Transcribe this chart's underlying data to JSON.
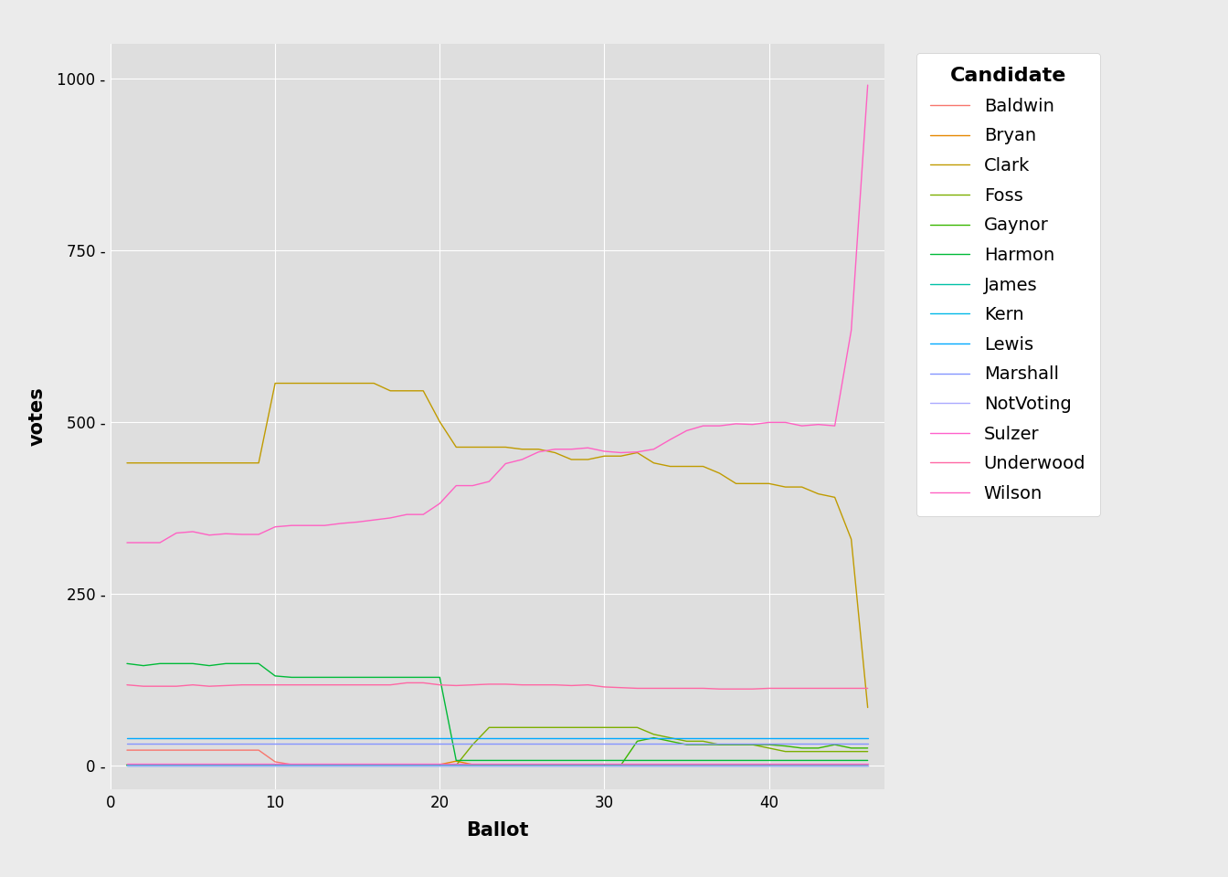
{
  "title": "",
  "xlabel": "Ballot",
  "ylabel": "votes",
  "plot_bg_color": "#DEDEDE",
  "fig_bg_color": "#EBEBEB",
  "legend_bg_color": "#FFFFFF",
  "grid_color": "white",
  "legend_title": "Candidate",
  "candidates": {
    "Baldwin": {
      "color": "#F8766D",
      "ballots": [
        1,
        2,
        3,
        4,
        5,
        6,
        7,
        8,
        9,
        10,
        11,
        12,
        13,
        14,
        15,
        16,
        17,
        18,
        19,
        20,
        21,
        22,
        23,
        24,
        25,
        26,
        27,
        28,
        29,
        30,
        31,
        32,
        33,
        34,
        35,
        36,
        37,
        38,
        39,
        40,
        41,
        42,
        43,
        44,
        45,
        46
      ],
      "votes": [
        22,
        22,
        22,
        22,
        22,
        22,
        22,
        22,
        22,
        5,
        1,
        1,
        1,
        1,
        1,
        1,
        1,
        1,
        1,
        1,
        0,
        0,
        0,
        0,
        0,
        0,
        0,
        0,
        0,
        0,
        0,
        0,
        0,
        0,
        0,
        0,
        0,
        0,
        0,
        0,
        0,
        0,
        0,
        0,
        0,
        0
      ]
    },
    "Bryan": {
      "color": "#E58700",
      "ballots": [
        1,
        2,
        3,
        4,
        5,
        6,
        7,
        8,
        9,
        10,
        11,
        12,
        13,
        14,
        15,
        16,
        17,
        18,
        19,
        20,
        21,
        22,
        23,
        24,
        25,
        26,
        27,
        28,
        29,
        30,
        31,
        32,
        33,
        34,
        35,
        36,
        37,
        38,
        39,
        40,
        41,
        42,
        43,
        44,
        45,
        46
      ],
      "votes": [
        1,
        1,
        1,
        1,
        1,
        1,
        1,
        1,
        1,
        1,
        1,
        1,
        1,
        1,
        1,
        1,
        1,
        1,
        1,
        1,
        6,
        1,
        1,
        1,
        1,
        1,
        1,
        1,
        1,
        1,
        1,
        1,
        1,
        1,
        1,
        1,
        1,
        1,
        1,
        1,
        1,
        1,
        1,
        1,
        1,
        1
      ]
    },
    "Clark": {
      "color": "#C09B00",
      "ballots": [
        1,
        2,
        3,
        4,
        5,
        6,
        7,
        8,
        9,
        10,
        11,
        12,
        13,
        14,
        15,
        16,
        17,
        18,
        19,
        20,
        21,
        22,
        23,
        24,
        25,
        26,
        27,
        28,
        29,
        30,
        31,
        32,
        33,
        34,
        35,
        36,
        37,
        38,
        39,
        40,
        41,
        42,
        43,
        44,
        45,
        46
      ],
      "votes": [
        440,
        440,
        440,
        440,
        440,
        440,
        440,
        440,
        440,
        556,
        556,
        556,
        556,
        556,
        556,
        556,
        545,
        545,
        545,
        500,
        463,
        463,
        463,
        463,
        460,
        460,
        455,
        445,
        445,
        450,
        450,
        455,
        440,
        435,
        435,
        435,
        425,
        410,
        410,
        410,
        405,
        405,
        395,
        390,
        329,
        84
      ]
    },
    "Foss": {
      "color": "#7CAE00",
      "ballots": [
        1,
        2,
        3,
        4,
        5,
        6,
        7,
        8,
        9,
        10,
        11,
        12,
        13,
        14,
        15,
        16,
        17,
        18,
        19,
        20,
        21,
        22,
        23,
        24,
        25,
        26,
        27,
        28,
        29,
        30,
        31,
        32,
        33,
        34,
        35,
        36,
        37,
        38,
        39,
        40,
        41,
        42,
        43,
        44,
        45,
        46
      ],
      "votes": [
        0,
        0,
        0,
        0,
        0,
        0,
        0,
        0,
        0,
        0,
        0,
        0,
        0,
        0,
        0,
        0,
        0,
        0,
        0,
        0,
        0,
        30,
        55,
        55,
        55,
        55,
        55,
        55,
        55,
        55,
        55,
        55,
        45,
        40,
        35,
        35,
        30,
        30,
        30,
        25,
        20,
        20,
        20,
        20,
        20,
        20
      ]
    },
    "Gaynor": {
      "color": "#39B600",
      "ballots": [
        1,
        2,
        3,
        4,
        5,
        6,
        7,
        8,
        9,
        10,
        11,
        12,
        13,
        14,
        15,
        16,
        17,
        18,
        19,
        20,
        21,
        22,
        23,
        24,
        25,
        26,
        27,
        28,
        29,
        30,
        31,
        32,
        33,
        34,
        35,
        36,
        37,
        38,
        39,
        40,
        41,
        42,
        43,
        44,
        45,
        46
      ],
      "votes": [
        0,
        0,
        0,
        0,
        0,
        0,
        0,
        0,
        0,
        0,
        0,
        0,
        0,
        0,
        0,
        0,
        0,
        0,
        0,
        0,
        0,
        0,
        0,
        0,
        0,
        0,
        0,
        0,
        0,
        0,
        0,
        35,
        40,
        35,
        30,
        30,
        30,
        30,
        30,
        30,
        28,
        25,
        25,
        30,
        25,
        25
      ]
    },
    "Harmon": {
      "color": "#00BA38",
      "ballots": [
        1,
        2,
        3,
        4,
        5,
        6,
        7,
        8,
        9,
        10,
        11,
        12,
        13,
        14,
        15,
        16,
        17,
        18,
        19,
        20,
        21,
        22,
        23,
        24,
        25,
        26,
        27,
        28,
        29,
        30,
        31,
        32,
        33,
        34,
        35,
        36,
        37,
        38,
        39,
        40,
        41,
        42,
        43,
        44,
        45,
        46
      ],
      "votes": [
        148,
        145,
        148,
        148,
        148,
        145,
        148,
        148,
        148,
        130,
        128,
        128,
        128,
        128,
        128,
        128,
        128,
        128,
        128,
        128,
        7,
        7,
        7,
        7,
        7,
        7,
        7,
        7,
        7,
        7,
        7,
        7,
        7,
        7,
        7,
        7,
        7,
        7,
        7,
        7,
        7,
        7,
        7,
        7,
        7,
        7
      ]
    },
    "James": {
      "color": "#00C1A7",
      "ballots": [
        1,
        2,
        3,
        4,
        5,
        6,
        7,
        8,
        9,
        10,
        11,
        12,
        13,
        14,
        15,
        16,
        17,
        18,
        19,
        20,
        21,
        22,
        23,
        24,
        25,
        26,
        27,
        28,
        29,
        30,
        31,
        32,
        33,
        34,
        35,
        36,
        37,
        38,
        39,
        40,
        41,
        42,
        43,
        44,
        45,
        46
      ],
      "votes": [
        0,
        0,
        0,
        0,
        0,
        0,
        0,
        0,
        0,
        0,
        0,
        0,
        0,
        0,
        0,
        0,
        0,
        0,
        0,
        0,
        0,
        1,
        1,
        1,
        1,
        1,
        1,
        1,
        1,
        1,
        1,
        1,
        1,
        1,
        1,
        1,
        1,
        1,
        1,
        1,
        1,
        1,
        1,
        1,
        1,
        1
      ]
    },
    "Kern": {
      "color": "#00B8E7",
      "ballots": [
        1,
        2,
        3,
        4,
        5,
        6,
        7,
        8,
        9,
        10,
        11,
        12,
        13,
        14,
        15,
        16,
        17,
        18,
        19,
        20,
        21,
        22,
        23,
        24,
        25,
        26,
        27,
        28,
        29,
        30,
        31,
        32,
        33,
        34,
        35,
        36,
        37,
        38,
        39,
        40,
        41,
        42,
        43,
        44,
        45,
        46
      ],
      "votes": [
        0,
        0,
        0,
        0,
        0,
        0,
        0,
        0,
        0,
        0,
        0,
        0,
        0,
        0,
        0,
        0,
        0,
        0,
        0,
        0,
        0,
        0,
        0,
        0,
        0,
        0,
        0,
        0,
        0,
        0,
        0,
        0,
        0,
        0,
        0,
        0,
        0,
        0,
        0,
        0,
        0,
        0,
        0,
        0,
        0,
        0
      ]
    },
    "Lewis": {
      "color": "#00A9FF",
      "ballots": [
        1,
        2,
        3,
        4,
        5,
        6,
        7,
        8,
        9,
        10,
        11,
        12,
        13,
        14,
        15,
        16,
        17,
        18,
        19,
        20,
        21,
        22,
        23,
        24,
        25,
        26,
        27,
        28,
        29,
        30,
        31,
        32,
        33,
        34,
        35,
        36,
        37,
        38,
        39,
        40,
        41,
        42,
        43,
        44,
        45,
        46
      ],
      "votes": [
        40,
        40,
        40,
        40,
        40,
        40,
        40,
        40,
        40,
        40,
        40,
        40,
        40,
        40,
        40,
        40,
        40,
        40,
        40,
        40,
        40,
        40,
        40,
        40,
        40,
        40,
        40,
        40,
        40,
        40,
        40,
        40,
        40,
        40,
        40,
        40,
        40,
        40,
        40,
        40,
        40,
        40,
        40,
        40,
        40,
        40
      ]
    },
    "Marshall": {
      "color": "#8494FF",
      "ballots": [
        1,
        2,
        3,
        4,
        5,
        6,
        7,
        8,
        9,
        10,
        11,
        12,
        13,
        14,
        15,
        16,
        17,
        18,
        19,
        20,
        21,
        22,
        23,
        24,
        25,
        26,
        27,
        28,
        29,
        30,
        31,
        32,
        33,
        34,
        35,
        36,
        37,
        38,
        39,
        40,
        41,
        42,
        43,
        44,
        45,
        46
      ],
      "votes": [
        31,
        31,
        31,
        31,
        31,
        31,
        31,
        31,
        31,
        31,
        31,
        31,
        31,
        31,
        31,
        31,
        31,
        31,
        31,
        31,
        31,
        31,
        31,
        31,
        31,
        31,
        31,
        31,
        31,
        31,
        31,
        31,
        31,
        31,
        31,
        31,
        31,
        31,
        31,
        31,
        31,
        31,
        31,
        31,
        31,
        31
      ]
    },
    "NotVoting": {
      "color": "#ABA9FF",
      "ballots": [
        1,
        2,
        3,
        4,
        5,
        6,
        7,
        8,
        9,
        10,
        11,
        12,
        13,
        14,
        15,
        16,
        17,
        18,
        19,
        20,
        21,
        22,
        23,
        24,
        25,
        26,
        27,
        28,
        29,
        30,
        31,
        32,
        33,
        34,
        35,
        36,
        37,
        38,
        39,
        40,
        41,
        42,
        43,
        44,
        45,
        46
      ],
      "votes": [
        0,
        0,
        0,
        0,
        0,
        0,
        0,
        0,
        0,
        0,
        0,
        0,
        0,
        0,
        0,
        0,
        0,
        0,
        0,
        0,
        0,
        0,
        0,
        0,
        0,
        0,
        0,
        0,
        0,
        0,
        0,
        0,
        0,
        0,
        0,
        0,
        0,
        0,
        0,
        0,
        0,
        0,
        0,
        0,
        0,
        0
      ]
    },
    "Sulzer": {
      "color": "#FF61CC",
      "ballots": [
        1,
        2,
        3,
        4,
        5,
        6,
        7,
        8,
        9,
        10,
        11,
        12,
        13,
        14,
        15,
        16,
        17,
        18,
        19,
        20,
        21,
        22,
        23,
        24,
        25,
        26,
        27,
        28,
        29,
        30,
        31,
        32,
        33,
        34,
        35,
        36,
        37,
        38,
        39,
        40,
        41,
        42,
        43,
        44,
        45,
        46
      ],
      "votes": [
        2,
        2,
        2,
        2,
        2,
        2,
        2,
        2,
        2,
        2,
        2,
        2,
        2,
        2,
        2,
        2,
        2,
        2,
        2,
        2,
        2,
        2,
        2,
        2,
        2,
        2,
        2,
        2,
        2,
        2,
        2,
        2,
        2,
        2,
        2,
        2,
        2,
        2,
        2,
        2,
        2,
        2,
        2,
        2,
        2,
        2
      ]
    },
    "Underwood": {
      "color": "#FF67A4",
      "ballots": [
        1,
        2,
        3,
        4,
        5,
        6,
        7,
        8,
        9,
        10,
        11,
        12,
        13,
        14,
        15,
        16,
        17,
        18,
        19,
        20,
        21,
        22,
        23,
        24,
        25,
        26,
        27,
        28,
        29,
        30,
        31,
        32,
        33,
        34,
        35,
        36,
        37,
        38,
        39,
        40,
        41,
        42,
        43,
        44,
        45,
        46
      ],
      "votes": [
        117,
        115,
        115,
        115,
        117,
        115,
        116,
        117,
        117,
        117,
        117,
        117,
        117,
        117,
        117,
        117,
        117,
        120,
        120,
        117,
        116,
        117,
        118,
        118,
        117,
        117,
        117,
        116,
        117,
        114,
        113,
        112,
        112,
        112,
        112,
        112,
        111,
        111,
        111,
        112,
        112,
        112,
        112,
        112,
        112,
        112
      ]
    },
    "Wilson": {
      "color": "#FF61C3",
      "ballots": [
        1,
        2,
        3,
        4,
        5,
        6,
        7,
        8,
        9,
        10,
        11,
        12,
        13,
        14,
        15,
        16,
        17,
        18,
        19,
        20,
        21,
        22,
        23,
        24,
        25,
        26,
        27,
        28,
        29,
        30,
        31,
        32,
        33,
        34,
        35,
        36,
        37,
        38,
        39,
        40,
        41,
        42,
        43,
        44,
        45,
        46
      ],
      "votes": [
        324,
        324,
        324,
        338,
        340,
        335,
        337,
        336,
        336,
        347,
        349,
        349,
        349,
        352,
        354,
        357,
        360,
        365,
        365,
        381,
        407,
        407,
        413,
        439,
        445,
        456,
        460,
        460,
        462,
        457,
        455,
        456,
        460,
        474,
        487,
        494,
        494,
        497,
        496,
        499,
        499,
        494,
        496,
        494,
        633,
        990
      ]
    }
  }
}
